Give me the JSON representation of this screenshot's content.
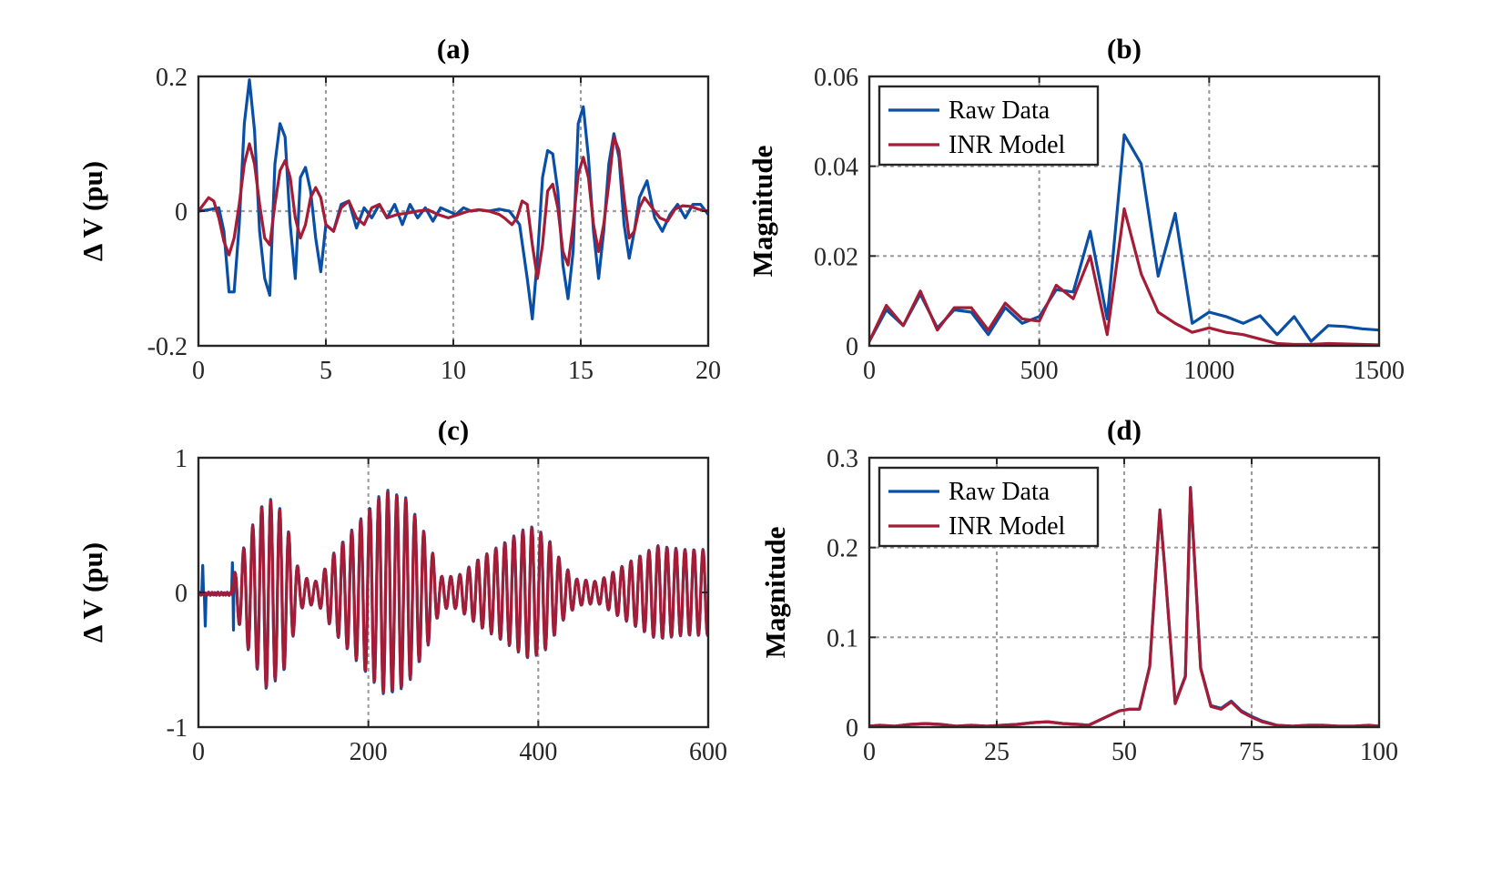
{
  "colors": {
    "raw": "#0a4fa6",
    "inr": "#a51c36",
    "grid": "#9a9a9a",
    "axis": "#262626"
  },
  "legend": {
    "raw": "Raw Data",
    "inr": "INR Model"
  },
  "chart_data": [
    {
      "id": "a",
      "type": "line",
      "title": "(a)",
      "xlabel": "",
      "ylabel": "Δ V (pu)",
      "xlim": [
        0,
        20
      ],
      "ylim": [
        -0.2,
        0.2
      ],
      "xticks": [
        0,
        5,
        10,
        15,
        20
      ],
      "xtick_labels": [
        "0",
        "5",
        "10",
        "15",
        "20"
      ],
      "yticks": [
        -0.2,
        0,
        0.2
      ],
      "ytick_labels": [
        "-0.2",
        "0",
        "0.2"
      ],
      "grid_x": [
        5,
        10,
        15
      ],
      "grid_y": [
        0
      ],
      "legend": false,
      "series": [
        {
          "name": "Raw Data",
          "color_key": "raw",
          "x": [
            0,
            0.4,
            0.8,
            1.0,
            1.2,
            1.4,
            1.6,
            1.8,
            2.0,
            2.2,
            2.4,
            2.6,
            2.8,
            3.0,
            3.2,
            3.4,
            3.6,
            3.8,
            4.0,
            4.2,
            4.4,
            4.6,
            4.8,
            5.0,
            5.3,
            5.6,
            5.9,
            6.2,
            6.5,
            6.8,
            7.1,
            7.4,
            7.7,
            8.0,
            8.3,
            8.6,
            8.9,
            9.2,
            9.5,
            9.8,
            10.1,
            10.4,
            10.7,
            11.0,
            11.4,
            11.8,
            12.2,
            12.6,
            12.9,
            13.1,
            13.3,
            13.5,
            13.7,
            13.9,
            14.1,
            14.3,
            14.5,
            14.7,
            14.9,
            15.1,
            15.3,
            15.5,
            15.7,
            15.9,
            16.1,
            16.3,
            16.5,
            16.7,
            16.9,
            17.1,
            17.3,
            17.6,
            17.9,
            18.2,
            18.5,
            18.8,
            19.1,
            19.4,
            19.7,
            20.0
          ],
          "y": [
            0,
            0.002,
            0.005,
            -0.03,
            -0.12,
            -0.12,
            -0.02,
            0.13,
            0.195,
            0.12,
            -0.03,
            -0.1,
            -0.125,
            0.07,
            0.13,
            0.11,
            -0.02,
            -0.1,
            0.05,
            0.065,
            0.03,
            -0.04,
            -0.09,
            -0.02,
            -0.03,
            0.01,
            0.015,
            -0.025,
            0.005,
            -0.01,
            0.01,
            -0.01,
            0.01,
            -0.02,
            0.01,
            -0.01,
            0.005,
            -0.015,
            0.005,
            0,
            -0.005,
            0.005,
            0,
            0.002,
            0,
            0.003,
            0,
            -0.02,
            -0.1,
            -0.16,
            -0.07,
            0.05,
            0.09,
            0.085,
            0.03,
            -0.08,
            -0.13,
            -0.06,
            0.13,
            0.155,
            0.08,
            -0.03,
            -0.1,
            -0.03,
            0.07,
            0.115,
            0.08,
            -0.02,
            -0.07,
            -0.03,
            0.02,
            0.045,
            -0.01,
            -0.03,
            -0.005,
            0.01,
            -0.01,
            0.01,
            0.01,
            -0.005
          ]
        },
        {
          "name": "INR Model",
          "color_key": "inr",
          "x": [
            0,
            0.2,
            0.4,
            0.6,
            0.8,
            1.0,
            1.2,
            1.4,
            1.6,
            1.8,
            2.0,
            2.2,
            2.4,
            2.6,
            2.8,
            3.0,
            3.2,
            3.4,
            3.6,
            3.8,
            4.0,
            4.2,
            4.4,
            4.6,
            4.8,
            5.0,
            5.3,
            5.6,
            5.9,
            6.2,
            6.5,
            6.8,
            7.1,
            7.4,
            7.8,
            8.2,
            8.6,
            9.0,
            9.4,
            9.8,
            10.2,
            10.6,
            11.0,
            11.4,
            11.8,
            12.0,
            12.3,
            12.5,
            12.7,
            12.9,
            13.1,
            13.3,
            13.5,
            13.7,
            13.9,
            14.1,
            14.3,
            14.5,
            14.7,
            14.9,
            15.1,
            15.3,
            15.5,
            15.7,
            15.9,
            16.1,
            16.3,
            16.5,
            16.7,
            16.9,
            17.1,
            17.3,
            17.5,
            17.8,
            18.1,
            18.4,
            18.7,
            19.0,
            19.3,
            19.6,
            20.0
          ],
          "y": [
            0,
            0.01,
            0.02,
            0.015,
            -0.01,
            -0.045,
            -0.065,
            -0.04,
            0.01,
            0.07,
            0.1,
            0.07,
            0.01,
            -0.04,
            -0.05,
            0.01,
            0.06,
            0.075,
            0.05,
            -0.01,
            -0.04,
            -0.02,
            0.02,
            0.035,
            0.02,
            -0.02,
            -0.03,
            0.005,
            0.015,
            -0.01,
            -0.02,
            0.005,
            0.01,
            -0.01,
            -0.005,
            -0.003,
            0,
            0.002,
            -0.005,
            -0.01,
            -0.005,
            0,
            0.002,
            0,
            -0.005,
            -0.01,
            -0.02,
            -0.01,
            0.015,
            0.01,
            -0.05,
            -0.1,
            -0.05,
            0.03,
            0.04,
            0.005,
            -0.06,
            -0.08,
            -0.02,
            0.055,
            0.08,
            0.05,
            -0.02,
            -0.06,
            -0.02,
            0.04,
            0.11,
            0.09,
            0.02,
            -0.04,
            -0.03,
            0.005,
            0.02,
            0.005,
            -0.01,
            -0.015,
            0.003,
            0.008,
            0.007,
            0.003,
            0
          ]
        }
      ]
    },
    {
      "id": "b",
      "type": "line",
      "title": "(b)",
      "xlabel": "",
      "ylabel": "Magnitude",
      "xlim": [
        0,
        1500
      ],
      "ylim": [
        0,
        0.06
      ],
      "xticks": [
        0,
        500,
        1000,
        1500
      ],
      "xtick_labels": [
        "0",
        "500",
        "1000",
        "1500"
      ],
      "yticks": [
        0,
        0.02,
        0.04,
        0.06
      ],
      "ytick_labels": [
        "0",
        "0.02",
        "0.04",
        "0.06"
      ],
      "grid_x": [
        500,
        1000
      ],
      "grid_y": [
        0.02,
        0.04
      ],
      "legend": true,
      "legend_position": "top-left",
      "series": [
        {
          "name": "Raw Data",
          "color_key": "raw",
          "x": [
            0,
            50,
            100,
            150,
            200,
            250,
            300,
            350,
            400,
            450,
            500,
            550,
            600,
            650,
            700,
            750,
            800,
            850,
            900,
            950,
            1000,
            1050,
            1100,
            1150,
            1200,
            1250,
            1300,
            1350,
            1400,
            1450,
            1500
          ],
          "y": [
            0.001,
            0.008,
            0.0045,
            0.0115,
            0.004,
            0.008,
            0.0075,
            0.0025,
            0.0085,
            0.005,
            0.0065,
            0.0125,
            0.012,
            0.0255,
            0.006,
            0.047,
            0.0405,
            0.0155,
            0.0295,
            0.005,
            0.0075,
            0.0065,
            0.005,
            0.0067,
            0.0025,
            0.0065,
            0.001,
            0.0045,
            0.0043,
            0.0038,
            0.0035
          ]
        },
        {
          "name": "INR Model",
          "color_key": "inr",
          "x": [
            0,
            50,
            100,
            150,
            200,
            250,
            300,
            350,
            400,
            450,
            500,
            550,
            600,
            650,
            700,
            750,
            800,
            850,
            900,
            950,
            1000,
            1050,
            1100,
            1150,
            1200,
            1250,
            1300,
            1350,
            1400,
            1450,
            1500
          ],
          "y": [
            0.001,
            0.009,
            0.0045,
            0.0122,
            0.0035,
            0.0085,
            0.0085,
            0.0035,
            0.0095,
            0.006,
            0.0055,
            0.0135,
            0.0105,
            0.02,
            0.0025,
            0.0305,
            0.016,
            0.0075,
            0.005,
            0.003,
            0.004,
            0.003,
            0.0025,
            0.0015,
            0.0005,
            0.0003,
            0.0003,
            0.0005,
            0.0004,
            0.0003,
            0.0002
          ]
        }
      ]
    },
    {
      "id": "c",
      "type": "line",
      "title": "(c)",
      "xlabel": "",
      "ylabel": "Δ V (pu)",
      "xlim": [
        0,
        600
      ],
      "ylim": [
        -1,
        1
      ],
      "xticks": [
        0,
        200,
        400,
        600
      ],
      "xtick_labels": [
        "0",
        "200",
        "400",
        "600"
      ],
      "yticks": [
        -1,
        0,
        1
      ],
      "ytick_labels": [
        "-1",
        "0",
        "1"
      ],
      "grid_x": [
        200,
        400
      ],
      "grid_y": [],
      "legend": false,
      "envelope": {
        "start": 40,
        "end": 600,
        "oscillation_period": 10.6,
        "breakpoints": [
          [
            40,
            0.1
          ],
          [
            60,
            0.45
          ],
          [
            80,
            0.72
          ],
          [
            100,
            0.6
          ],
          [
            120,
            0.12
          ],
          [
            140,
            0.08
          ],
          [
            160,
            0.3
          ],
          [
            185,
            0.5
          ],
          [
            200,
            0.62
          ],
          [
            220,
            0.77
          ],
          [
            245,
            0.7
          ],
          [
            270,
            0.4
          ],
          [
            285,
            0.12
          ],
          [
            305,
            0.12
          ],
          [
            330,
            0.25
          ],
          [
            355,
            0.35
          ],
          [
            390,
            0.5
          ],
          [
            410,
            0.42
          ],
          [
            430,
            0.2
          ],
          [
            445,
            0.1
          ],
          [
            470,
            0.08
          ],
          [
            500,
            0.2
          ],
          [
            540,
            0.35
          ],
          [
            570,
            0.32
          ],
          [
            600,
            0.32
          ]
        ]
      },
      "series": [
        {
          "name": "Raw Data",
          "color_key": "raw",
          "spikes": [
            [
              5,
              0.2
            ],
            [
              8,
              -0.25
            ],
            [
              40,
              0.22
            ],
            [
              41,
              -0.28
            ]
          ]
        },
        {
          "name": "INR Model",
          "color_key": "inr"
        }
      ]
    },
    {
      "id": "d",
      "type": "line",
      "title": "(d)",
      "xlabel": "",
      "ylabel": "Magnitude",
      "xlim": [
        0,
        100
      ],
      "ylim": [
        0,
        0.3
      ],
      "xticks": [
        0,
        25,
        50,
        75,
        100
      ],
      "xtick_labels": [
        "0",
        "25",
        "50",
        "75",
        "100"
      ],
      "yticks": [
        0,
        0.1,
        0.2,
        0.3
      ],
      "ytick_labels": [
        "0",
        "0.1",
        "0.2",
        "0.3"
      ],
      "grid_x": [
        25,
        50,
        75
      ],
      "grid_y": [
        0.1,
        0.2
      ],
      "legend": true,
      "legend_position": "top-left",
      "series": [
        {
          "name": "Raw Data",
          "color_key": "raw",
          "x": [
            0,
            2,
            5,
            8,
            11,
            14,
            17,
            20,
            23,
            26,
            29,
            32,
            35,
            38,
            41,
            43,
            46,
            49,
            51,
            53,
            55,
            57,
            58,
            60,
            62,
            63,
            65,
            67,
            69,
            71,
            73,
            75,
            77,
            80,
            83,
            86,
            89,
            92,
            95,
            98,
            100
          ],
          "y": [
            0.001,
            0.002,
            0.001,
            0.003,
            0.004,
            0.003,
            0.001,
            0.002,
            0.001,
            0.002,
            0.003,
            0.005,
            0.006,
            0.004,
            0.003,
            0.002,
            0.01,
            0.018,
            0.02,
            0.02,
            0.068,
            0.242,
            0.175,
            0.027,
            0.057,
            0.267,
            0.066,
            0.024,
            0.021,
            0.029,
            0.018,
            0.012,
            0.007,
            0.002,
            0.001,
            0.002,
            0.002,
            0.001,
            0.001,
            0.002,
            0.001
          ]
        },
        {
          "name": "INR Model",
          "color_key": "inr",
          "x": [
            0,
            2,
            5,
            8,
            11,
            14,
            17,
            20,
            23,
            26,
            29,
            32,
            35,
            38,
            41,
            43,
            46,
            49,
            51,
            53,
            55,
            57,
            58,
            60,
            62,
            63,
            65,
            67,
            69,
            71,
            73,
            75,
            77,
            80,
            83,
            86,
            89,
            92,
            95,
            98,
            100
          ],
          "y": [
            0.001,
            0.002,
            0.001,
            0.003,
            0.004,
            0.003,
            0.001,
            0.002,
            0.001,
            0.002,
            0.003,
            0.005,
            0.006,
            0.004,
            0.003,
            0.002,
            0.01,
            0.018,
            0.02,
            0.02,
            0.067,
            0.241,
            0.174,
            0.026,
            0.056,
            0.266,
            0.065,
            0.023,
            0.02,
            0.028,
            0.017,
            0.011,
            0.006,
            0.002,
            0.001,
            0.002,
            0.002,
            0.001,
            0.001,
            0.002,
            0.001
          ]
        }
      ]
    }
  ]
}
